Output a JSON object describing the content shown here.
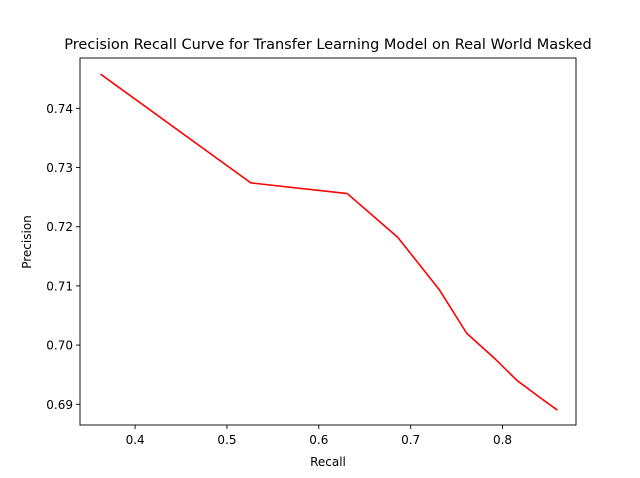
{
  "chart_data": {
    "type": "line",
    "title": "Precision Recall Curve for Transfer Learning Model on Real World Masked",
    "xlabel": "Recall",
    "ylabel": "Precision",
    "xlim": [
      0.34,
      0.88
    ],
    "ylim": [
      0.6865,
      0.7485
    ],
    "xticks": [
      0.4,
      0.5,
      0.6,
      0.7,
      0.8
    ],
    "xtick_labels": [
      "0.4",
      "0.5",
      "0.6",
      "0.7",
      "0.8"
    ],
    "yticks": [
      0.69,
      0.7,
      0.71,
      0.72,
      0.73,
      0.74
    ],
    "ytick_labels": [
      "0.69",
      "0.70",
      "0.71",
      "0.72",
      "0.73",
      "0.74"
    ],
    "grid": false,
    "series": [
      {
        "color": "#ff0000",
        "x": [
          0.363,
          0.526,
          0.631,
          0.686,
          0.731,
          0.761,
          0.791,
          0.816,
          0.842,
          0.859
        ],
        "y": [
          0.7457,
          0.7274,
          0.7256,
          0.7182,
          0.7094,
          0.702,
          0.6978,
          0.694,
          0.691,
          0.6891
        ]
      }
    ]
  }
}
